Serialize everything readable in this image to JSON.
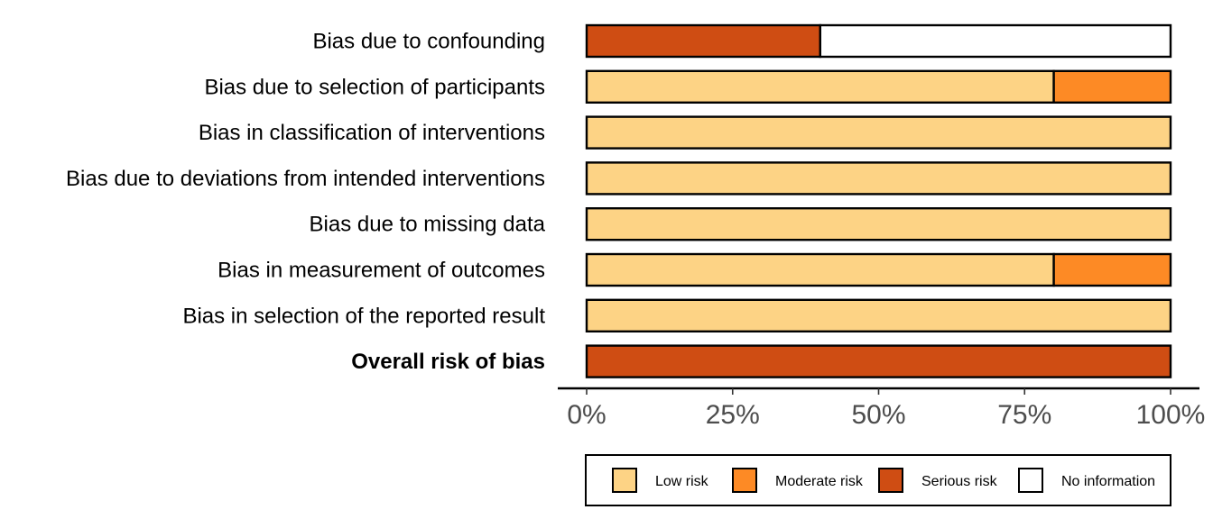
{
  "chart_data": {
    "type": "bar",
    "orientation": "horizontal",
    "stacked": true,
    "categories": [
      "Bias due to confounding",
      "Bias due to selection of participants",
      "Bias in classification of interventions",
      "Bias due to deviations from intended interventions",
      "Bias due to missing data",
      "Bias in measurement of outcomes",
      "Bias in selection of the reported result",
      "Overall risk of bias"
    ],
    "bold_categories": [
      "Overall risk of bias"
    ],
    "series": [
      {
        "name": "Low risk",
        "color": "#fdd385",
        "values": [
          0,
          80,
          100,
          100,
          100,
          80,
          100,
          0
        ]
      },
      {
        "name": "Moderate risk",
        "color": "#fd8a25",
        "values": [
          0,
          20,
          0,
          0,
          0,
          20,
          0,
          0
        ]
      },
      {
        "name": "Serious risk",
        "color": "#cf4d13",
        "values": [
          40,
          0,
          0,
          0,
          0,
          0,
          0,
          100
        ]
      },
      {
        "name": "No information",
        "color": "#ffffff",
        "values": [
          60,
          0,
          0,
          0,
          0,
          0,
          0,
          0
        ]
      }
    ],
    "xlim": [
      0,
      100
    ],
    "x_ticks": [
      0,
      25,
      50,
      75,
      100
    ],
    "x_tick_labels": [
      "0%",
      "25%",
      "50%",
      "75%",
      "100%"
    ],
    "xlabel": "",
    "ylabel": "",
    "title": "",
    "grid": false,
    "legend_position": "bottom"
  }
}
